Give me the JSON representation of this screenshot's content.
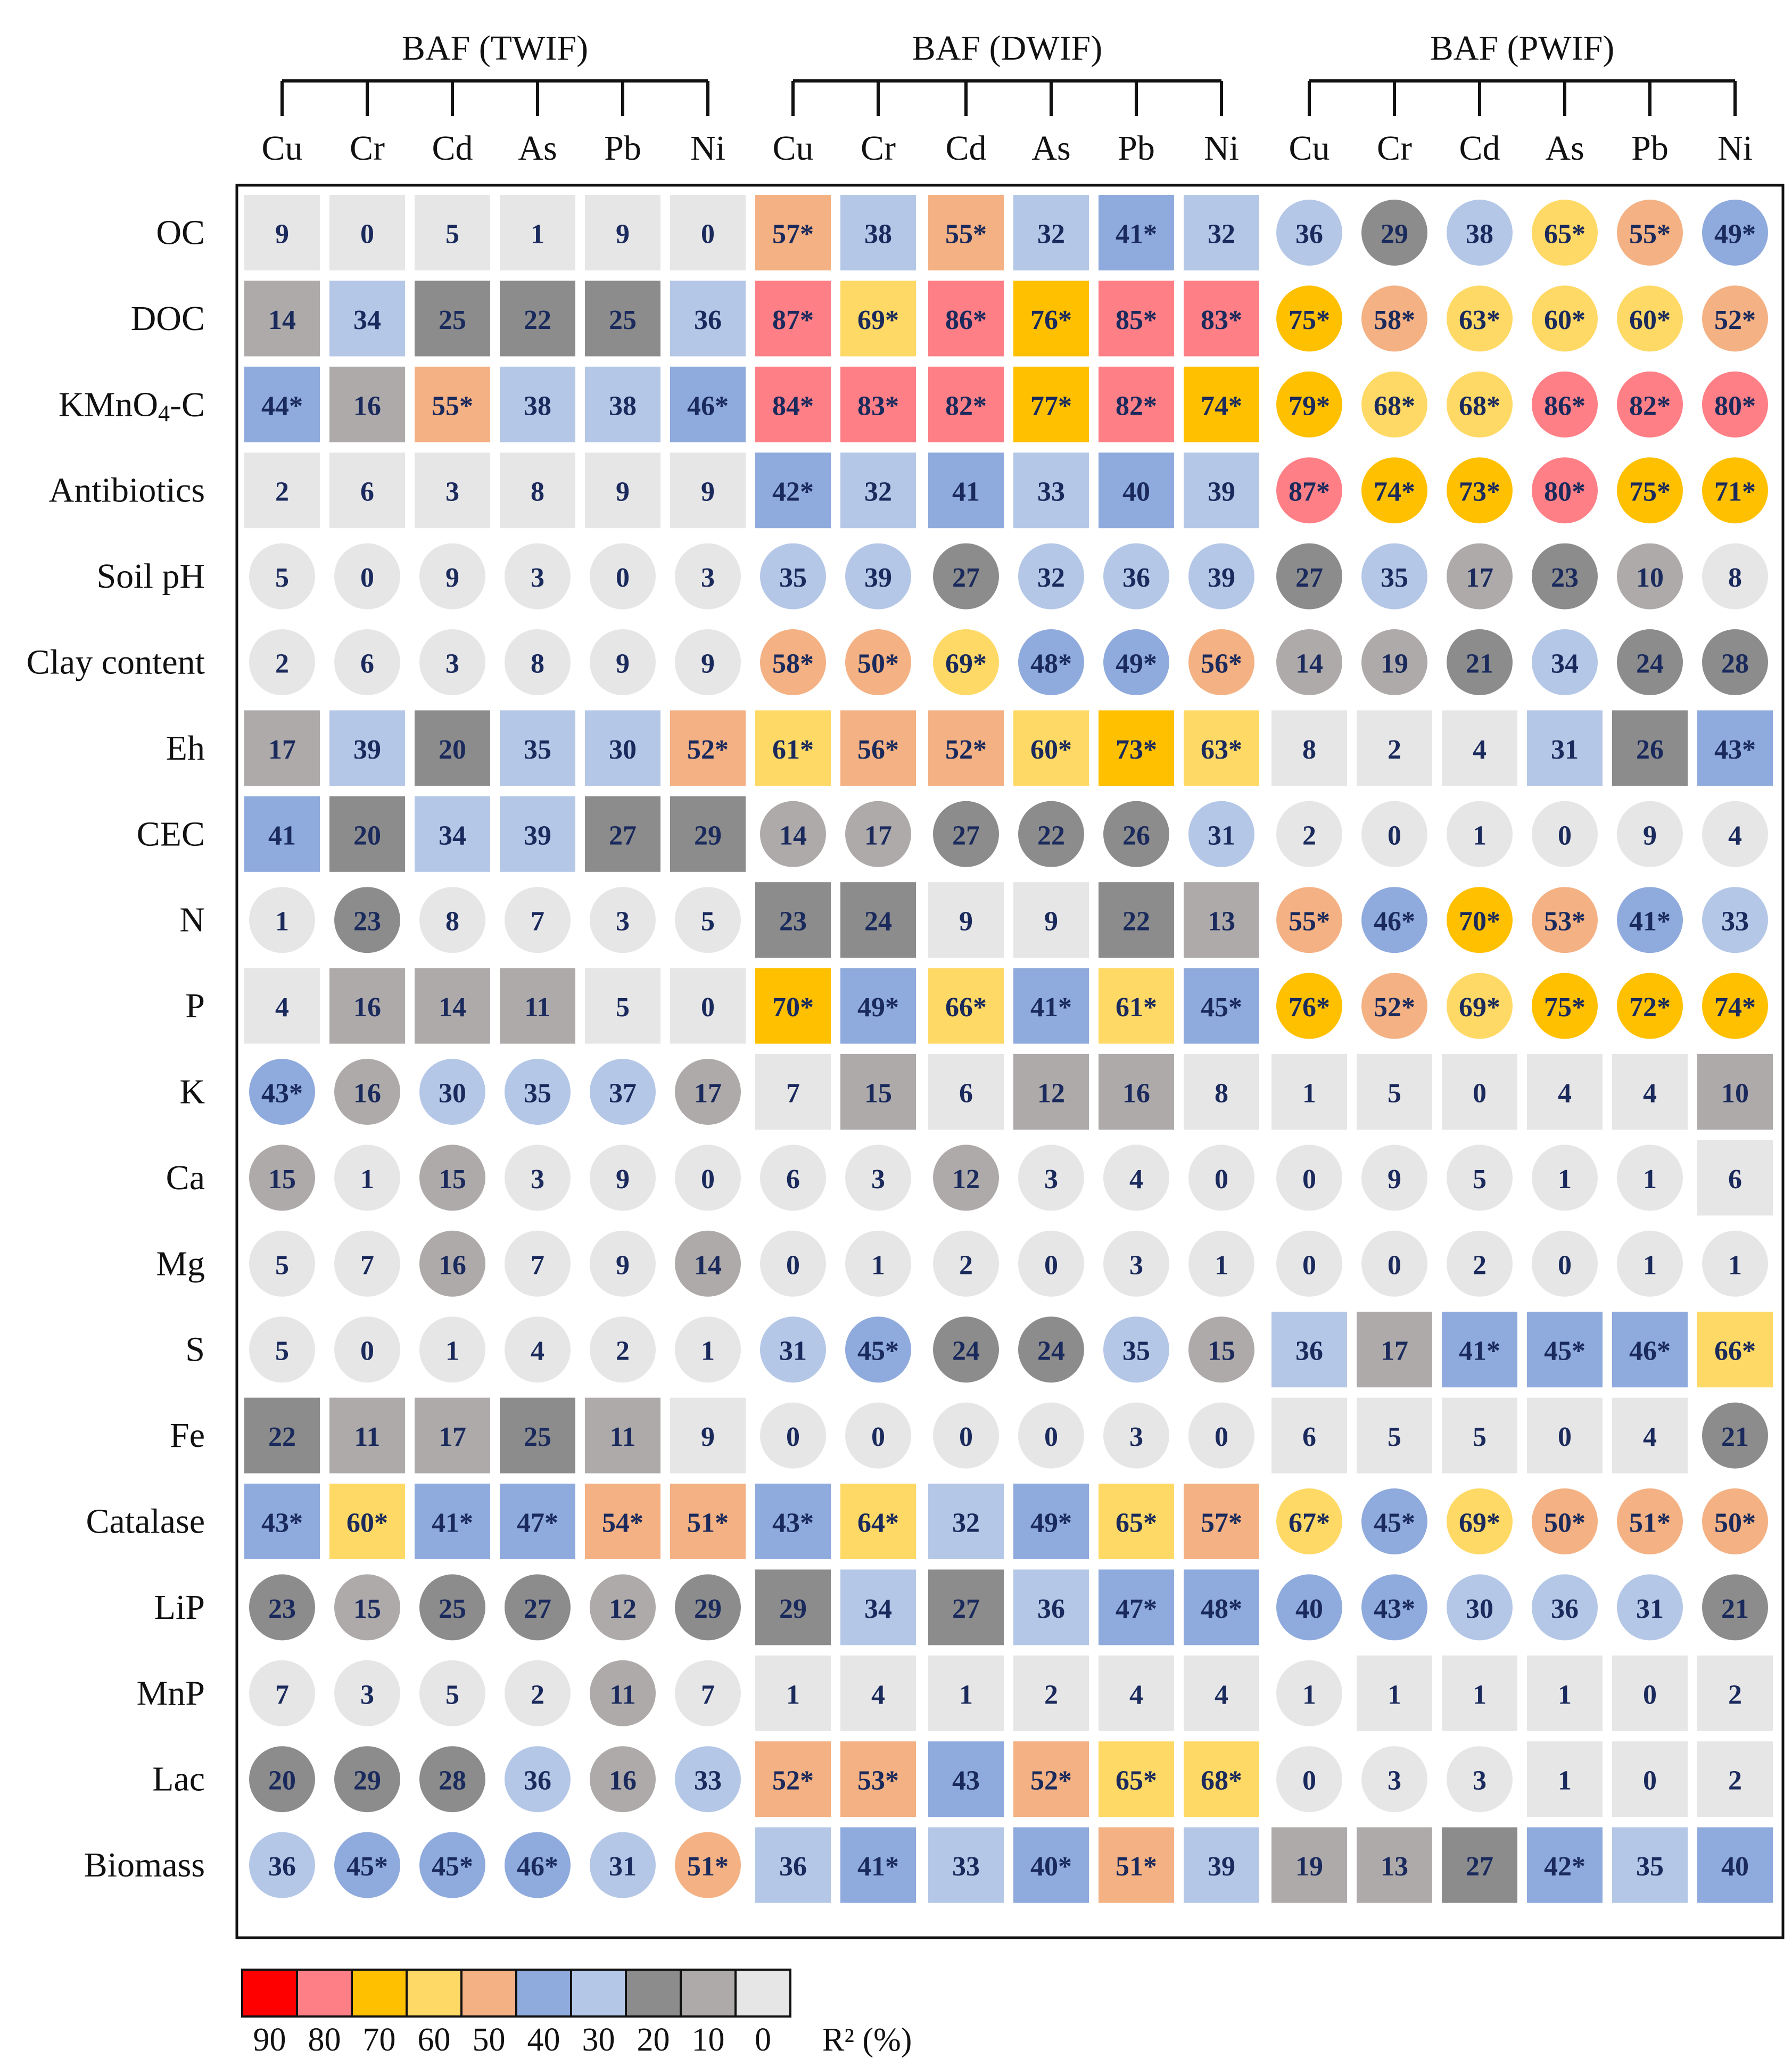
{
  "chart_data": {
    "type": "heatmap",
    "groups": [
      "BAF (TWIF)",
      "BAF (DWIF)",
      "BAF (PWIF)"
    ],
    "metals": [
      "Cu",
      "Cr",
      "Cd",
      "As",
      "Pb",
      "Ni"
    ],
    "rows": [
      "OC",
      "DOC",
      "KMnO4-C",
      "Antibiotics",
      "Soil pH",
      "Clay content",
      "Eh",
      "CEC",
      "N",
      "P",
      "K",
      "Ca",
      "Mg",
      "S",
      "Fe",
      "Catalase",
      "LiP",
      "MnP",
      "Lac",
      "Biomass"
    ],
    "values": [
      [
        9,
        0,
        5,
        1,
        9,
        0,
        57,
        38,
        55,
        32,
        41,
        32,
        36,
        29,
        38,
        65,
        55,
        49
      ],
      [
        14,
        34,
        25,
        22,
        25,
        36,
        87,
        69,
        86,
        76,
        85,
        83,
        75,
        58,
        63,
        60,
        60,
        52
      ],
      [
        44,
        16,
        55,
        38,
        38,
        46,
        84,
        83,
        82,
        77,
        82,
        74,
        79,
        68,
        68,
        86,
        82,
        80
      ],
      [
        2,
        6,
        3,
        8,
        9,
        9,
        42,
        32,
        41,
        33,
        40,
        39,
        87,
        74,
        73,
        80,
        75,
        71
      ],
      [
        5,
        0,
        9,
        3,
        0,
        3,
        35,
        39,
        27,
        32,
        36,
        39,
        27,
        35,
        17,
        23,
        10,
        8
      ],
      [
        2,
        6,
        3,
        8,
        9,
        9,
        58,
        50,
        69,
        48,
        49,
        56,
        14,
        19,
        21,
        34,
        24,
        28
      ],
      [
        17,
        39,
        20,
        35,
        30,
        52,
        61,
        56,
        52,
        60,
        73,
        63,
        8,
        2,
        4,
        31,
        26,
        43
      ],
      [
        41,
        20,
        34,
        39,
        27,
        29,
        14,
        17,
        27,
        22,
        26,
        31,
        2,
        0,
        1,
        0,
        9,
        4
      ],
      [
        1,
        23,
        8,
        7,
        3,
        5,
        23,
        24,
        9,
        9,
        22,
        13,
        55,
        46,
        70,
        53,
        41,
        33
      ],
      [
        4,
        16,
        14,
        11,
        5,
        0,
        70,
        49,
        66,
        41,
        61,
        45,
        76,
        52,
        69,
        75,
        72,
        74
      ],
      [
        43,
        16,
        30,
        35,
        37,
        17,
        7,
        15,
        6,
        12,
        16,
        8,
        1,
        5,
        0,
        4,
        4,
        10
      ],
      [
        15,
        1,
        15,
        3,
        9,
        0,
        6,
        3,
        12,
        3,
        4,
        0,
        0,
        9,
        5,
        1,
        1,
        6
      ],
      [
        5,
        7,
        16,
        7,
        9,
        14,
        0,
        1,
        2,
        0,
        3,
        1,
        0,
        0,
        2,
        0,
        1,
        1
      ],
      [
        5,
        0,
        1,
        4,
        2,
        1,
        31,
        45,
        24,
        24,
        35,
        15,
        36,
        17,
        41,
        45,
        46,
        66
      ],
      [
        22,
        11,
        17,
        25,
        11,
        9,
        0,
        0,
        0,
        0,
        3,
        0,
        6,
        5,
        5,
        0,
        4,
        21
      ],
      [
        43,
        60,
        41,
        47,
        54,
        51,
        43,
        64,
        32,
        49,
        65,
        57,
        67,
        45,
        69,
        50,
        51,
        50
      ],
      [
        23,
        15,
        25,
        27,
        12,
        29,
        29,
        34,
        27,
        36,
        47,
        48,
        40,
        43,
        30,
        36,
        31,
        21
      ],
      [
        7,
        3,
        5,
        2,
        11,
        7,
        1,
        4,
        1,
        2,
        4,
        4,
        1,
        1,
        1,
        1,
        0,
        2
      ],
      [
        20,
        29,
        28,
        36,
        16,
        33,
        52,
        53,
        43,
        52,
        65,
        68,
        0,
        3,
        3,
        1,
        0,
        2
      ],
      [
        36,
        45,
        45,
        46,
        31,
        51,
        36,
        41,
        33,
        40,
        51,
        39,
        19,
        13,
        27,
        42,
        35,
        40
      ]
    ],
    "significant": [
      [
        0,
        0,
        0,
        0,
        0,
        0,
        1,
        0,
        1,
        0,
        1,
        0,
        0,
        0,
        0,
        1,
        1,
        1
      ],
      [
        0,
        0,
        0,
        0,
        0,
        0,
        1,
        1,
        1,
        1,
        1,
        1,
        1,
        1,
        1,
        1,
        1,
        1
      ],
      [
        1,
        0,
        1,
        0,
        0,
        1,
        1,
        1,
        1,
        1,
        1,
        1,
        1,
        1,
        1,
        1,
        1,
        1
      ],
      [
        0,
        0,
        0,
        0,
        0,
        0,
        1,
        0,
        0,
        0,
        0,
        0,
        1,
        1,
        1,
        1,
        1,
        1
      ],
      [
        0,
        0,
        0,
        0,
        0,
        0,
        0,
        0,
        0,
        0,
        0,
        0,
        0,
        0,
        0,
        0,
        0,
        0
      ],
      [
        0,
        0,
        0,
        0,
        0,
        0,
        1,
        1,
        1,
        1,
        1,
        1,
        0,
        0,
        0,
        0,
        0,
        0
      ],
      [
        0,
        0,
        0,
        0,
        0,
        1,
        1,
        1,
        1,
        1,
        1,
        1,
        0,
        0,
        0,
        0,
        0,
        1
      ],
      [
        0,
        0,
        0,
        0,
        0,
        0,
        0,
        0,
        0,
        0,
        0,
        0,
        0,
        0,
        0,
        0,
        0,
        0
      ],
      [
        0,
        0,
        0,
        0,
        0,
        0,
        0,
        0,
        0,
        0,
        0,
        0,
        1,
        1,
        1,
        1,
        1,
        0
      ],
      [
        0,
        0,
        0,
        0,
        0,
        0,
        1,
        1,
        1,
        1,
        1,
        1,
        1,
        1,
        1,
        1,
        1,
        1
      ],
      [
        1,
        0,
        0,
        0,
        0,
        0,
        0,
        0,
        0,
        0,
        0,
        0,
        0,
        0,
        0,
        0,
        0,
        0
      ],
      [
        0,
        0,
        0,
        0,
        0,
        0,
        0,
        0,
        0,
        0,
        0,
        0,
        0,
        0,
        0,
        0,
        0,
        0
      ],
      [
        0,
        0,
        0,
        0,
        0,
        0,
        0,
        0,
        0,
        0,
        0,
        0,
        0,
        0,
        0,
        0,
        0,
        0
      ],
      [
        0,
        0,
        0,
        0,
        0,
        0,
        0,
        1,
        0,
        0,
        0,
        0,
        0,
        0,
        1,
        1,
        1,
        1
      ],
      [
        0,
        0,
        0,
        0,
        0,
        0,
        0,
        0,
        0,
        0,
        0,
        0,
        0,
        0,
        0,
        0,
        0,
        0
      ],
      [
        1,
        1,
        1,
        1,
        1,
        1,
        1,
        1,
        0,
        1,
        1,
        1,
        1,
        1,
        1,
        1,
        1,
        1
      ],
      [
        0,
        0,
        0,
        0,
        0,
        0,
        0,
        0,
        0,
        0,
        1,
        1,
        0,
        1,
        0,
        0,
        0,
        0
      ],
      [
        0,
        0,
        0,
        0,
        0,
        0,
        0,
        0,
        0,
        0,
        0,
        0,
        0,
        0,
        0,
        0,
        0,
        0
      ],
      [
        0,
        0,
        0,
        0,
        0,
        0,
        1,
        1,
        0,
        1,
        1,
        1,
        0,
        0,
        0,
        0,
        0,
        0
      ],
      [
        0,
        1,
        1,
        1,
        0,
        1,
        0,
        1,
        0,
        1,
        1,
        0,
        0,
        0,
        0,
        1,
        0,
        0
      ]
    ],
    "shapes": [
      "SSSSSSSSSSSSCCCCCC",
      "SSSSSSSSSSSSCCCCCC",
      "SSSSSSSSSSSSCCCCCC",
      "SSSSSSSSSSSSCCCCCC",
      "CCCCCCCCCCCCCCCCCC",
      "CCCCCCCCCCCCCCCCCC",
      "SSSSSSSSSSSSSSSSSS",
      "SSSSSSCCCCCCCCCCCC",
      "CCCCCCSSSSSSCCCCCC",
      "SSSSSSSSSSSSCCCCCC",
      "CCCCCCSSSSSSSSSSSS",
      "CCCCCCCCCCCCCCCCCS",
      "CCCCCCCCCCCCCCCCCC",
      "CCCCCCCCCCCCSSSSSS",
      "SSSSSSCCCCCCSSSSSC",
      "SSSSSSSSSSSSCCCCCC",
      "CCCCCCSSSSSSCCCCCC",
      "CCCCCCSSSSSSCSSSSS",
      "CCCCCCSSSSSSCCCSSS",
      "CCCCCCSSSSSSSSSSSS"
    ],
    "legend": {
      "title": "R² (%)",
      "ticks": [
        "90",
        "80",
        "70",
        "60",
        "50",
        "40",
        "30",
        "20",
        "10",
        "0"
      ],
      "colors": [
        "#ff0000",
        "#fe7f86",
        "#ffc000",
        "#ffd966",
        "#f4b183",
        "#8faadc",
        "#b4c7e7",
        "#8c8c8c",
        "#aeaaaa",
        "#e7e6e6"
      ]
    },
    "cell_colors": {
      "ge80": "#fe7f86",
      "ge70": "#ffc000",
      "ge60": "#ffd966",
      "ge50": "#f4b183",
      "ge40": "#8faadc",
      "ge30": "#b4c7e7",
      "ge20": "#8c8c8c",
      "ge10": "#aeaaaa",
      "lt10": "#e7e6e6"
    }
  }
}
